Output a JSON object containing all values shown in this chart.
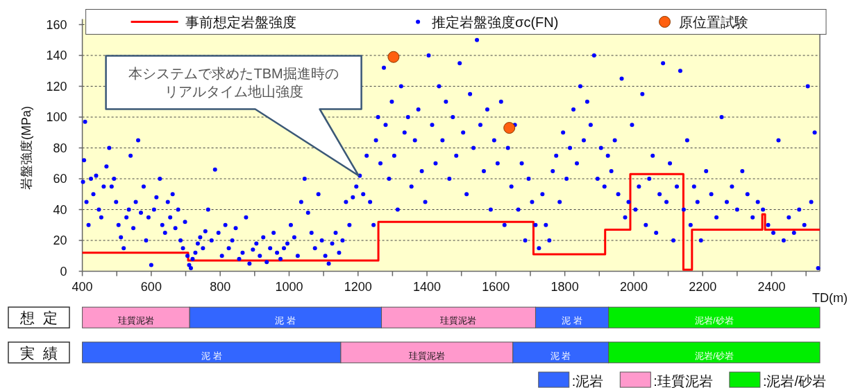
{
  "chart_data": [
    {
      "type": "scatter",
      "xlabel": "TD(m)",
      "ylabel": "岩盤強度(MPa)",
      "xlim": [
        400,
        2540
      ],
      "ylim": [
        0,
        160
      ],
      "xticks": [
        400,
        {
          "value": 500,
          "label": null
        },
        600,
        {
          "value": 700,
          "label": null
        },
        800,
        {
          "value": 900,
          "label": null
        },
        1000,
        {
          "value": 1100,
          "label": null
        },
        1200,
        {
          "value": 1300,
          "label": null
        },
        1400,
        {
          "value": 1500,
          "label": null
        },
        1600,
        {
          "value": 1700,
          "label": null
        },
        1800,
        {
          "value": 1900,
          "label": null
        },
        2000,
        {
          "value": 2100,
          "label": null
        },
        2200,
        {
          "value": 2300,
          "label": null
        },
        2400,
        {
          "value": 2500,
          "label": null
        }
      ],
      "yticks": [
        0,
        20,
        40,
        60,
        80,
        100,
        120,
        140,
        160
      ],
      "grid": "y",
      "legend": "top",
      "annotations": [
        "本システムで求めたTBM掘進時のリアルタイム地山強度"
      ],
      "series": [
        {
          "name": "事前想定岩盤強度",
          "type": "step",
          "color": "#ff0000",
          "x": [
            400,
            707,
            1259,
            1709,
            1917,
            1990,
            2144,
            2169,
            2373,
            2381,
            2540
          ],
          "values": [
            12,
            7,
            32,
            11,
            27,
            63,
            1,
            27,
            37,
            27,
            27
          ]
        },
        {
          "name": "推定岩盤強度σc(FN)",
          "type": "scatter",
          "marker": "circle",
          "color": "#0000ff",
          "x": [
            402,
            405,
            408,
            412,
            418,
            425,
            432,
            440,
            448,
            455,
            462,
            470,
            478,
            485,
            492,
            498,
            505,
            512,
            520,
            528,
            535,
            540,
            548,
            555,
            562,
            570,
            578,
            585,
            592,
            600,
            608,
            615,
            625,
            632,
            640,
            648,
            655,
            662,
            670,
            678,
            685,
            692,
            698,
            705,
            710,
            715,
            720,
            728,
            735,
            742,
            750,
            757,
            765,
            775,
            785,
            795,
            805,
            815,
            825,
            835,
            845,
            855,
            865,
            875,
            885,
            895,
            905,
            915,
            925,
            935,
            945,
            955,
            965,
            975,
            985,
            995,
            1005,
            1015,
            1025,
            1035,
            1045,
            1055,
            1065,
            1075,
            1085,
            1095,
            1105,
            1115,
            1125,
            1135,
            1145,
            1155,
            1165,
            1175,
            1185,
            1195,
            1205,
            1215,
            1225,
            1235,
            1245,
            1252,
            1258,
            1265,
            1275,
            1280,
            1290,
            1298,
            1305,
            1315,
            1325,
            1335,
            1345,
            1355,
            1365,
            1375,
            1385,
            1395,
            1405,
            1415,
            1425,
            1435,
            1445,
            1455,
            1465,
            1475,
            1485,
            1495,
            1505,
            1515,
            1525,
            1535,
            1545,
            1555,
            1565,
            1575,
            1585,
            1595,
            1605,
            1615,
            1625,
            1635,
            1645,
            1655,
            1665,
            1675,
            1685,
            1695,
            1705,
            1715,
            1725,
            1735,
            1745,
            1755,
            1765,
            1775,
            1785,
            1795,
            1805,
            1815,
            1825,
            1835,
            1845,
            1855,
            1865,
            1875,
            1885,
            1895,
            1905,
            1915,
            1925,
            1935,
            1945,
            1955,
            1965,
            1975,
            1985,
            1995,
            2005,
            2015,
            2025,
            2035,
            2045,
            2055,
            2065,
            2075,
            2085,
            2095,
            2105,
            2115,
            2125,
            2135,
            2145,
            2155,
            2165,
            2175,
            2185,
            2195,
            2210,
            2225,
            2240,
            2255,
            2270,
            2285,
            2300,
            2315,
            2330,
            2345,
            2360,
            2375,
            2390,
            2405,
            2420,
            2435,
            2450,
            2465,
            2480,
            2495,
            2505,
            2515,
            2525,
            2535
          ],
          "values": [
            58,
            72,
            97,
            45,
            30,
            60,
            50,
            62,
            40,
            35,
            55,
            68,
            80,
            55,
            60,
            45,
            30,
            22,
            15,
            35,
            40,
            75,
            28,
            45,
            85,
            38,
            55,
            20,
            35,
            4,
            40,
            48,
            60,
            30,
            25,
            45,
            35,
            50,
            28,
            40,
            20,
            15,
            32,
            10,
            4,
            2,
            8,
            12,
            18,
            22,
            15,
            26,
            40,
            20,
            66,
            25,
            10,
            30,
            15,
            20,
            28,
            8,
            12,
            35,
            5,
            14,
            18,
            10,
            22,
            6,
            15,
            25,
            12,
            8,
            15,
            18,
            30,
            22,
            10,
            45,
            60,
            38,
            25,
            15,
            50,
            20,
            10,
            5,
            18,
            25,
            12,
            20,
            45,
            30,
            48,
            55,
            62,
            50,
            75,
            45,
            30,
            85,
            100,
            70,
            132,
            95,
            60,
            110,
            75,
            40,
            120,
            90,
            100,
            55,
            85,
            105,
            65,
            45,
            140,
            95,
            70,
            120,
            85,
            110,
            60,
            100,
            75,
            135,
            90,
            50,
            115,
            80,
            150,
            95,
            65,
            105,
            40,
            85,
            70,
            110,
            30,
            80,
            55,
            95,
            40,
            70,
            20,
            60,
            45,
            30,
            15,
            50,
            30,
            20,
            65,
            75,
            45,
            90,
            60,
            80,
            105,
            70,
            120,
            85,
            110,
            95,
            140,
            60,
            80,
            55,
            75,
            65,
            85,
            50,
            125,
            35,
            45,
            95,
            40,
            55,
            115,
            30,
            60,
            75,
            25,
            50,
            135,
            45,
            70,
            20,
            55,
            130,
            40,
            85,
            30,
            55,
            45,
            20,
            65,
            50,
            35,
            100,
            45,
            55,
            40,
            65,
            50,
            35,
            45,
            40,
            30,
            25,
            85,
            20,
            35,
            25,
            40,
            30,
            120,
            45,
            90,
            2
          ]
        },
        {
          "name": "原位置試験",
          "type": "scatter",
          "marker": "circle",
          "color": "#ff6010",
          "x": [
            1303,
            1639
          ],
          "values": [
            139,
            93
          ]
        }
      ]
    },
    {
      "type": "bar",
      "orientation": "horizontal",
      "categories": [
        "想定",
        "実績"
      ],
      "xlim": [
        400,
        2540
      ],
      "tick_labels": "y",
      "legend": "bottom",
      "series": [
        {
          "name": ":泥岩",
          "color": "#3366ff",
          "base": [
            711,
            400
          ],
          "values": [
            557,
            750
          ],
          "value_labels": [
            "泥 岩",
            "泥 岩"
          ]
        },
        {
          "color": "#3366ff",
          "base": [
            1715,
            1649
          ],
          "values": [
            212,
            278
          ],
          "value_labels": [
            "泥 岩",
            "泥 岩"
          ]
        },
        {
          "name": ":珪質泥岩",
          "color": "#ff99cc",
          "base": [
            400,
            1150
          ],
          "values": [
            311,
            499
          ],
          "value_labels": [
            "珪質泥岩",
            "珪質泥岩"
          ]
        },
        {
          "color": "#ff99cc",
          "base": [
            1268,
            null
          ],
          "values": [
            447,
            null
          ],
          "value_labels": [
            "珪質泥岩",
            null
          ]
        },
        {
          "name": ":泥岩/砂岩",
          "color": "#00ee00",
          "base": [
            1927,
            1927
          ],
          "values": [
            613,
            613
          ],
          "value_labels": [
            "泥岩/砂岩",
            "泥岩/砂岩"
          ]
        }
      ]
    }
  ]
}
